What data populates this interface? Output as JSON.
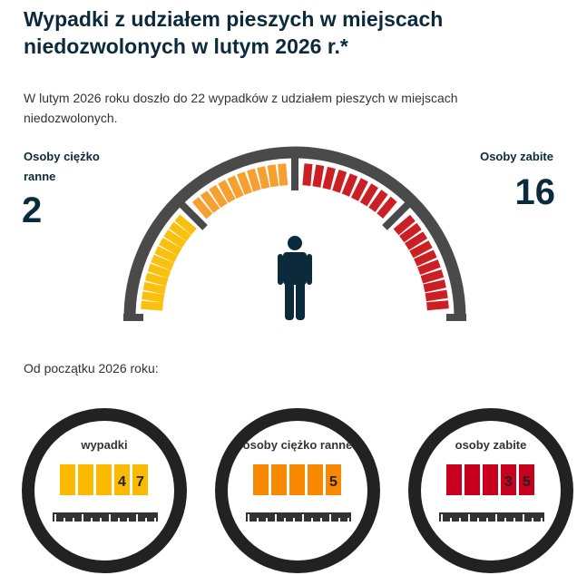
{
  "title": "Wypadki z udziałem pieszych w miejscach niedozwolonych w lutym 2026 r.*",
  "lead": "W lutym 2026 roku doszło do 22 wypadków z udziałem pieszych w miejscach niedozwolonych.",
  "injured": {
    "label": "Osoby ciężko ranne",
    "value": "2"
  },
  "killed": {
    "label": "Osoby zabite",
    "value": "16"
  },
  "gauge": {
    "colors": {
      "yellow": "#f9c00f",
      "orange": "#f7a030",
      "red": "#cc1f24",
      "frame": "#4a4a4a",
      "person": "#0b2a3c"
    },
    "icon": "pedestrian-icon"
  },
  "since_label": "Od początku 2026 roku:",
  "counters": [
    {
      "label": "wypadki",
      "digits": [
        "",
        "",
        "",
        "4",
        "7"
      ],
      "color": "#fbb900"
    },
    {
      "label": "osoby ciężko ranne",
      "digits": [
        "",
        "",
        "",
        "",
        "5"
      ],
      "color": "#f98900"
    },
    {
      "label": "osoby zabite",
      "digits": [
        "",
        "",
        "",
        "3",
        "5"
      ],
      "color": "#c8001e"
    }
  ]
}
